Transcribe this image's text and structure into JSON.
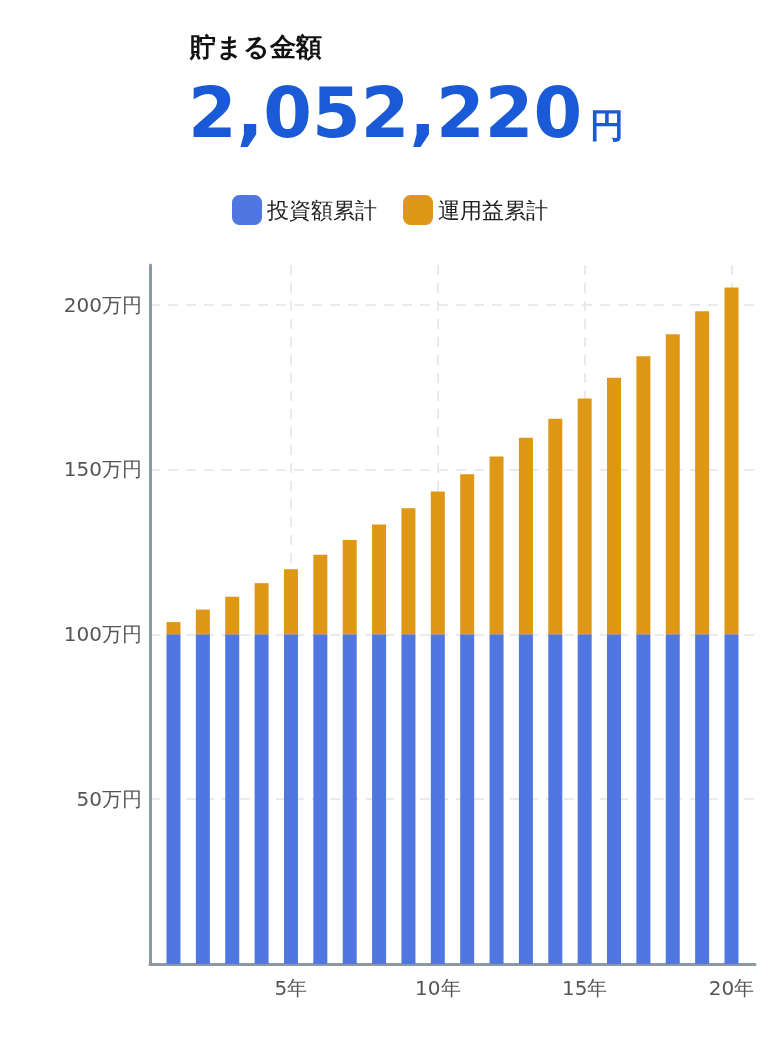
{
  "chart_data": {
    "type": "bar",
    "stacked": true,
    "title": "貯まる金額",
    "subtitle": "2,052,220円",
    "x": [
      1,
      2,
      3,
      4,
      5,
      6,
      7,
      8,
      9,
      10,
      11,
      12,
      13,
      14,
      15,
      16,
      17,
      18,
      19,
      20
    ],
    "series": [
      {
        "name": "投資額累計",
        "color": "#4f76e1",
        "values": [
          100,
          100,
          100,
          100,
          100,
          100,
          100,
          100,
          100,
          100,
          100,
          100,
          100,
          100,
          100,
          100,
          100,
          100,
          100,
          100
        ]
      },
      {
        "name": "運用益累計",
        "color": "#de9815",
        "values": [
          3.7,
          7.5,
          11.4,
          15.5,
          19.7,
          24.1,
          28.6,
          33.3,
          38.2,
          43.3,
          48.5,
          53.9,
          59.6,
          65.4,
          71.5,
          77.8,
          84.3,
          91.0,
          98.0,
          105.2
        ]
      }
    ],
    "xlim": [
      0.2,
      20.8
    ],
    "xticks": [
      {
        "value": 5,
        "label": "5年"
      },
      {
        "value": 10,
        "label": "10年"
      },
      {
        "value": 15,
        "label": "15年"
      },
      {
        "value": 20,
        "label": "20年"
      }
    ],
    "ylim": [
      0,
      212
    ],
    "yticks": [
      {
        "value": 50,
        "label": "50万円"
      },
      {
        "value": 100,
        "label": "100万円"
      },
      {
        "value": 150,
        "label": "150万円"
      },
      {
        "value": 200,
        "label": "200万円"
      }
    ],
    "grid": true,
    "legend": "top"
  }
}
